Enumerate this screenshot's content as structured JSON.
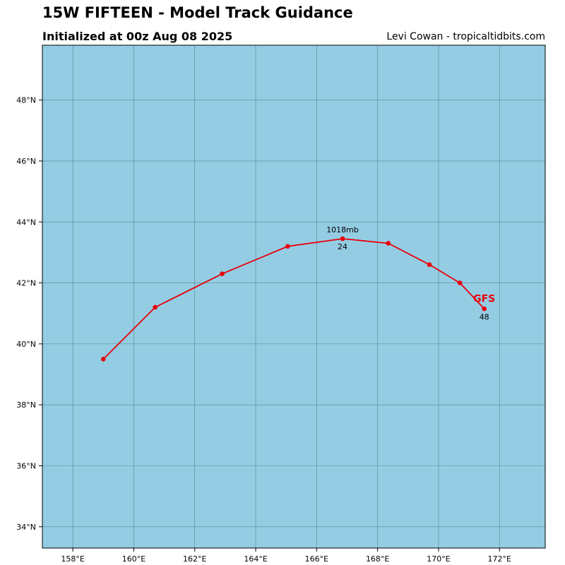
{
  "header": {
    "title": "15W FIFTEEN - Model Track Guidance",
    "subtitle": "Initialized at 00z Aug 08 2025",
    "credit": "Levi Cowan - tropicaltidbits.com"
  },
  "map": {
    "ocean_color": "#94CDE3",
    "grid_color": "#4a6e78",
    "lon_range": [
      157,
      173.5
    ],
    "lat_range": [
      33.3,
      49.8
    ],
    "lon_ticks": [
      {
        "value": 158,
        "label": "158°E"
      },
      {
        "value": 160,
        "label": "160°E"
      },
      {
        "value": 162,
        "label": "162°E"
      },
      {
        "value": 164,
        "label": "164°E"
      },
      {
        "value": 166,
        "label": "166°E"
      },
      {
        "value": 168,
        "label": "168°E"
      },
      {
        "value": 170,
        "label": "170°E"
      },
      {
        "value": 172,
        "label": "172°E"
      }
    ],
    "lat_ticks": [
      {
        "value": 34,
        "label": "34°N"
      },
      {
        "value": 36,
        "label": "36°N"
      },
      {
        "value": 38,
        "label": "38°N"
      },
      {
        "value": 40,
        "label": "40°N"
      },
      {
        "value": 42,
        "label": "42°N"
      },
      {
        "value": 44,
        "label": "44°N"
      },
      {
        "value": 46,
        "label": "46°N"
      },
      {
        "value": 48,
        "label": "48°N"
      }
    ],
    "track": {
      "model": "GFS",
      "color": "#e8000b",
      "points": [
        {
          "lon": 159.0,
          "lat": 39.5
        },
        {
          "lon": 160.7,
          "lat": 41.2
        },
        {
          "lon": 162.9,
          "lat": 42.3
        },
        {
          "lon": 165.05,
          "lat": 43.2
        },
        {
          "lon": 166.85,
          "lat": 43.45
        },
        {
          "lon": 168.35,
          "lat": 43.3
        },
        {
          "lon": 169.7,
          "lat": 42.6
        },
        {
          "lon": 170.7,
          "lat": 42.0
        },
        {
          "lon": 171.5,
          "lat": 41.15
        }
      ],
      "annotations": [
        {
          "point": 4,
          "hour": "24",
          "pressure": "1018mb"
        },
        {
          "point": 8,
          "hour": "48"
        }
      ]
    }
  }
}
